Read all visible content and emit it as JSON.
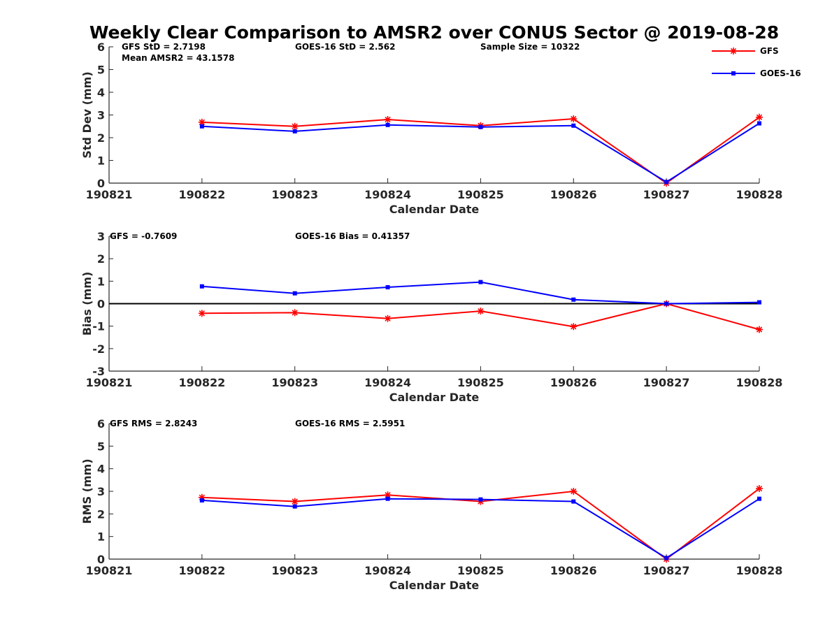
{
  "title": "Weekly Clear Comparison to AMSR2 over CONUS Sector @ 2019-08-28",
  "colors": {
    "gfs": "#ff0000",
    "goes": "#0000ff",
    "axis": "#262626",
    "zero_line": "#000000"
  },
  "legend": {
    "placement": "top-right",
    "items": [
      {
        "label": "GFS",
        "color": "#ff0000",
        "marker": "asterisk"
      },
      {
        "label": "GOES-16",
        "color": "#0000ff",
        "marker": "square"
      }
    ]
  },
  "panels": [
    {
      "ylabel": "Std Dev (mm)",
      "xlabel": "Calendar Date",
      "stats_left": [
        "GFS StD = 2.7198",
        "Mean AMSR2 = 43.1578"
      ],
      "stats_mid": "GOES-16 StD = 2.562",
      "stats_right": "Sample Size = 10322"
    },
    {
      "ylabel": "Bias (mm)",
      "xlabel": "Calendar Date",
      "stats_left": [
        "GFS = -0.7609"
      ],
      "stats_mid": "GOES-16 Bias  = 0.41357",
      "stats_right": ""
    },
    {
      "ylabel": "RMS (mm)",
      "xlabel": "Calendar Date",
      "stats_left": [
        "GFS RMS = 2.8243"
      ],
      "stats_mid": "GOES-16 RMS = 2.5951",
      "stats_right": ""
    }
  ],
  "chart_data": [
    {
      "type": "line",
      "ylabel": "Std Dev (mm)",
      "xlabel": "Calendar Date",
      "x": [
        190822,
        190823,
        190824,
        190825,
        190826,
        190827,
        190828
      ],
      "xticks": [
        "190821",
        "190822",
        "190823",
        "190824",
        "190825",
        "190826",
        "190827",
        "190828"
      ],
      "xlim": [
        190821,
        190828
      ],
      "ylim": [
        0,
        6
      ],
      "yticks": [
        "0",
        "1",
        "2",
        "3",
        "4",
        "5",
        "6"
      ],
      "zero_line": false,
      "series": [
        {
          "name": "GFS",
          "values": [
            2.68,
            2.5,
            2.8,
            2.53,
            2.83,
            0.0,
            2.9
          ]
        },
        {
          "name": "GOES-16",
          "values": [
            2.5,
            2.28,
            2.56,
            2.47,
            2.53,
            0.05,
            2.63
          ]
        }
      ]
    },
    {
      "type": "line",
      "ylabel": "Bias (mm)",
      "xlabel": "Calendar Date",
      "x": [
        190822,
        190823,
        190824,
        190825,
        190826,
        190827,
        190828
      ],
      "xticks": [
        "190821",
        "190822",
        "190823",
        "190824",
        "190825",
        "190826",
        "190827",
        "190828"
      ],
      "xlim": [
        190821,
        190828
      ],
      "ylim": [
        -3,
        3
      ],
      "yticks": [
        "-3",
        "-2",
        "-1",
        "0",
        "1",
        "2",
        "3"
      ],
      "zero_line": true,
      "series": [
        {
          "name": "GFS",
          "values": [
            -0.43,
            -0.4,
            -0.66,
            -0.33,
            -1.02,
            0.0,
            -1.15
          ]
        },
        {
          "name": "GOES-16",
          "values": [
            0.77,
            0.46,
            0.73,
            0.96,
            0.18,
            0.0,
            0.06
          ]
        }
      ]
    },
    {
      "type": "line",
      "ylabel": "RMS (mm)",
      "xlabel": "Calendar Date",
      "x": [
        190822,
        190823,
        190824,
        190825,
        190826,
        190827,
        190828
      ],
      "xticks": [
        "190821",
        "190822",
        "190823",
        "190824",
        "190825",
        "190826",
        "190827",
        "190828"
      ],
      "xlim": [
        190821,
        190828
      ],
      "ylim": [
        0,
        6
      ],
      "yticks": [
        "0",
        "1",
        "2",
        "3",
        "4",
        "5",
        "6"
      ],
      "zero_line": false,
      "series": [
        {
          "name": "GFS",
          "values": [
            2.73,
            2.55,
            2.84,
            2.55,
            3.0,
            0.0,
            3.12
          ]
        },
        {
          "name": "GOES-16",
          "values": [
            2.6,
            2.33,
            2.67,
            2.64,
            2.55,
            0.05,
            2.67
          ]
        }
      ]
    }
  ]
}
